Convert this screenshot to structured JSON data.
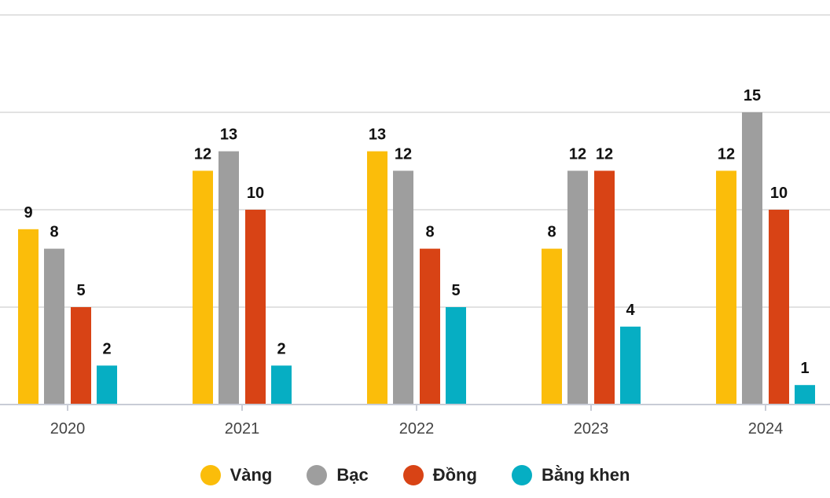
{
  "chart_data": {
    "type": "bar",
    "categories": [
      "2020",
      "2021",
      "2022",
      "2023",
      "2024"
    ],
    "series": [
      {
        "name": "Vàng",
        "color": "#fbbd0a",
        "values": [
          9,
          12,
          13,
          8,
          12
        ]
      },
      {
        "name": "Bạc",
        "color": "#9e9e9e",
        "values": [
          8,
          13,
          12,
          12,
          15
        ]
      },
      {
        "name": "Đồng",
        "color": "#d84315",
        "values": [
          5,
          10,
          8,
          12,
          10
        ]
      },
      {
        "name": "Bằng khen",
        "color": "#06aec3",
        "values": [
          2,
          2,
          5,
          4,
          1
        ]
      }
    ],
    "ylim": [
      0,
      20
    ],
    "grid": true,
    "legend_position": "bottom",
    "data_labels": true
  }
}
